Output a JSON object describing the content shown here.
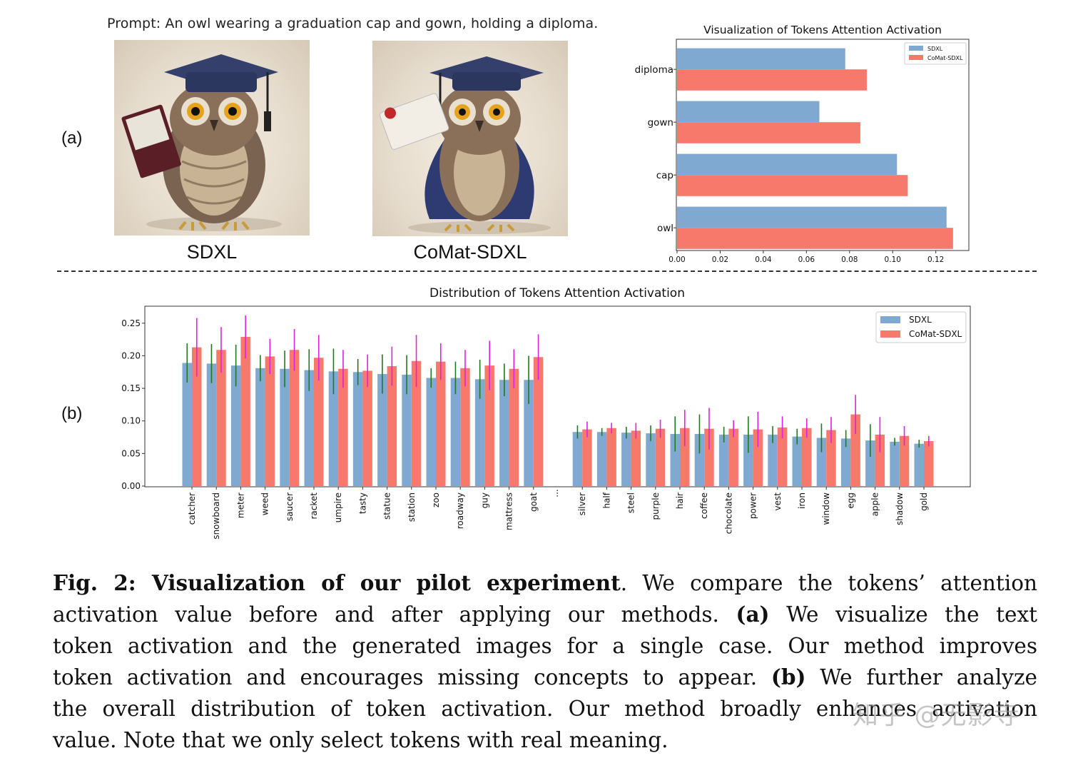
{
  "figure": {
    "prompt": "Prompt: An owl wearing a graduation cap and gown, holding a diploma.",
    "panel_a_label": "(a)",
    "panel_b_label": "(b)",
    "images": [
      {
        "caption": "SDXL"
      },
      {
        "caption": "CoMat-SDXL"
      }
    ]
  },
  "colors": {
    "sdxl": "#7fa9d0",
    "comat": "#f7796b",
    "err_sdxl": "#1f7a1f",
    "err_comat": "#e020e0"
  },
  "chart_data": [
    {
      "type": "bar",
      "orientation": "horizontal",
      "title": "Visualization of Tokens Attention Activation",
      "categories": [
        "diploma",
        "gown",
        "cap",
        "owl"
      ],
      "series": [
        {
          "name": "SDXL",
          "values": [
            0.078,
            0.066,
            0.102,
            0.125
          ]
        },
        {
          "name": "CoMat-SDXL",
          "values": [
            0.088,
            0.085,
            0.107,
            0.128
          ]
        }
      ],
      "xlim": [
        0,
        0.135
      ],
      "xticks": [
        "0.00",
        "0.02",
        "0.04",
        "0.06",
        "0.08",
        "0.10",
        "0.12"
      ],
      "legend": "top-right"
    },
    {
      "type": "bar",
      "title": "Distribution of Tokens Attention Activation",
      "categories": [
        "catcher",
        "snowboard",
        "meter",
        "weed",
        "saucer",
        "racket",
        "umpire",
        "tasty",
        "statue",
        "station",
        "zoo",
        "roadway",
        "guy",
        "mattress",
        "goat",
        "...",
        "silver",
        "half",
        "steel",
        "purple",
        "hair",
        "coffee",
        "chocolate",
        "power",
        "vest",
        "iron",
        "window",
        "egg",
        "apple",
        "shadow",
        "gold"
      ],
      "series": [
        {
          "name": "SDXL",
          "values": [
            0.189,
            0.188,
            0.185,
            0.181,
            0.18,
            0.178,
            0.176,
            0.175,
            0.172,
            0.171,
            0.166,
            0.166,
            0.164,
            0.163,
            0.163,
            null,
            0.083,
            0.083,
            0.082,
            0.081,
            0.08,
            0.08,
            0.079,
            0.079,
            0.079,
            0.076,
            0.074,
            0.073,
            0.07,
            0.068,
            0.065
          ],
          "errors": [
            0.03,
            0.03,
            0.032,
            0.02,
            0.028,
            0.032,
            0.035,
            0.02,
            0.03,
            0.03,
            0.015,
            0.025,
            0.03,
            0.025,
            0.037,
            null,
            0.01,
            0.006,
            0.009,
            0.012,
            0.027,
            0.03,
            0.012,
            0.028,
            0.013,
            0.012,
            0.022,
            0.013,
            0.025,
            0.006,
            0.006
          ]
        },
        {
          "name": "CoMat-SDXL",
          "values": [
            0.213,
            0.209,
            0.229,
            0.199,
            0.209,
            0.197,
            0.18,
            0.177,
            0.184,
            0.192,
            0.191,
            0.181,
            0.185,
            0.18,
            0.198,
            null,
            0.087,
            0.089,
            0.085,
            0.088,
            0.089,
            0.088,
            0.088,
            0.087,
            0.09,
            0.089,
            0.086,
            0.11,
            0.079,
            0.077,
            0.069
          ],
          "errors": [
            0.045,
            0.035,
            0.033,
            0.027,
            0.032,
            0.035,
            0.029,
            0.025,
            0.03,
            0.04,
            0.028,
            0.028,
            0.038,
            0.03,
            0.035,
            null,
            0.012,
            0.008,
            0.012,
            0.014,
            0.028,
            0.032,
            0.013,
            0.027,
            0.017,
            0.015,
            0.02,
            0.03,
            0.027,
            0.015,
            0.008
          ]
        }
      ],
      "ylim": [
        0,
        0.275
      ],
      "yticks": [
        "0.00",
        "0.05",
        "0.10",
        "0.15",
        "0.20",
        "0.25"
      ],
      "legend": "top-right"
    }
  ],
  "caption": {
    "l1_bold": "Fig. 2: Visualization of our pilot experiment",
    "l1_rest": ". We compare the tokens’ attention",
    "l2_a": "activation value before and after applying our methods.",
    "l2_bold": "(a)",
    "l2_b": "We visualize the text",
    "l3": "token activation and the generated images for a single case. Our method improves",
    "l4_a": "token activation and encourages missing concepts to appear.",
    "l4_bold": "(b)",
    "l4_b": "We further analyze",
    "l5": "the overall distribution of token activation. Our method broadly enhances activation",
    "l6": "value. Note that we only select tokens with real meaning."
  },
  "watermark": "知乎 @无影寺"
}
